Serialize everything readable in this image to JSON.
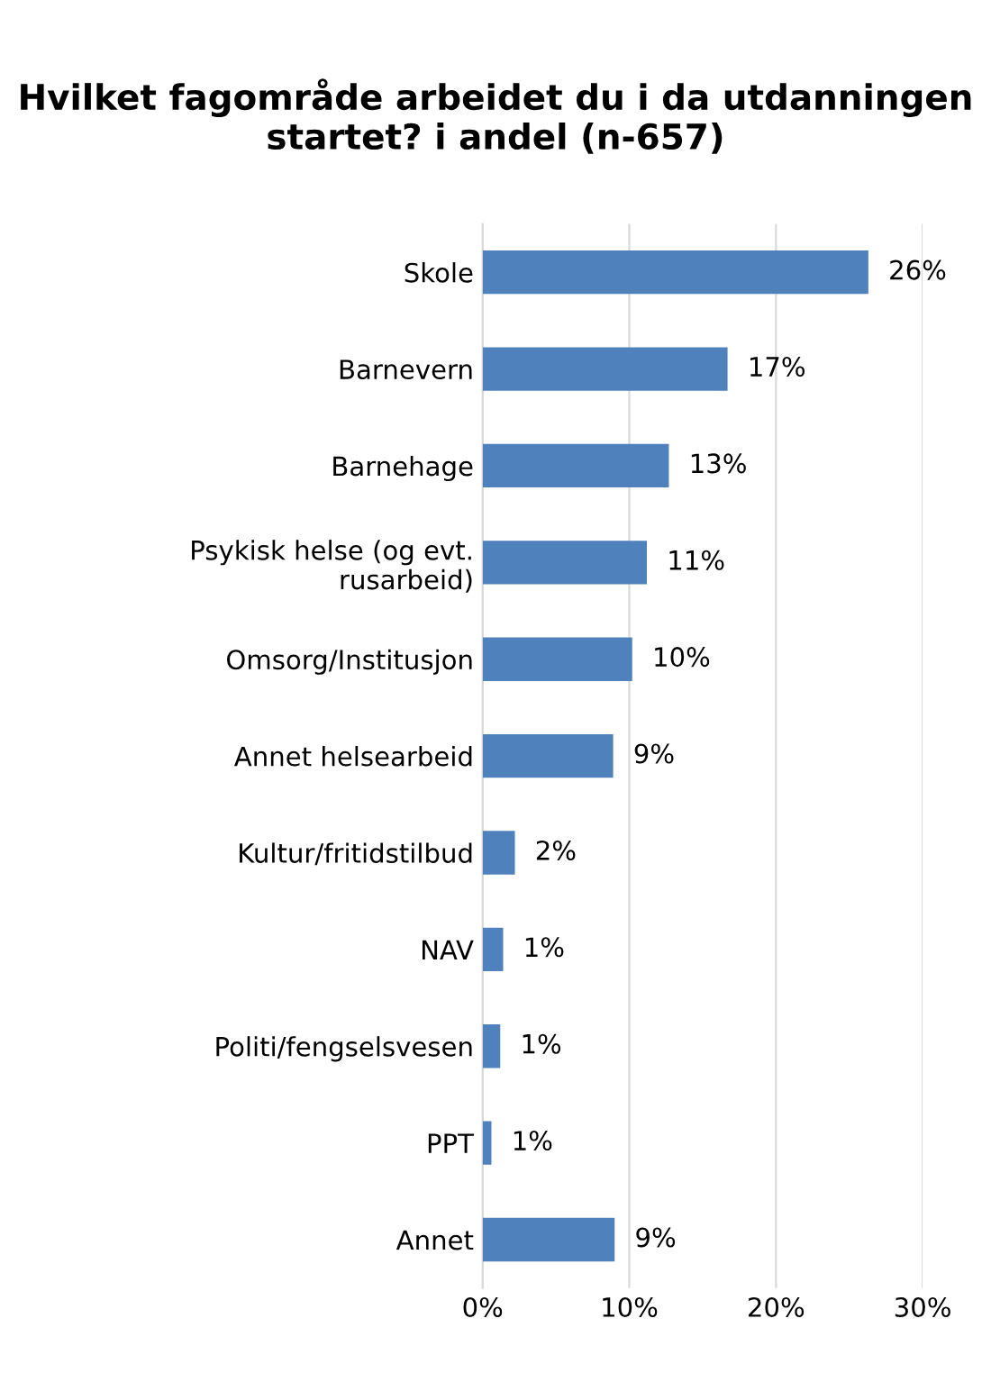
{
  "chart_data": {
    "type": "bar",
    "orientation": "horizontal",
    "title": "Hvilket fagområde arbeidet du i da utdanningen startet? i andel (n-657)",
    "categories": [
      "Skole",
      "Barnevern",
      "Barnehage",
      "Psykisk helse (og evt.\nrusarbeid)",
      "Omsorg/Institusjon",
      "Annet helsearbeid",
      "Kultur/fritidstilbud",
      "NAV",
      "Politi/fengselsvesen",
      "PPT",
      "Annet"
    ],
    "values": [
      26.3,
      16.7,
      12.7,
      11.2,
      10.2,
      8.9,
      2.2,
      1.4,
      1.2,
      0.6,
      9.0
    ],
    "value_labels": [
      "26%",
      "17%",
      "13%",
      "11%",
      "10%",
      "9%",
      "2%",
      "1%",
      "1%",
      "1%",
      "9%"
    ],
    "color": "#4f81bd",
    "xlim": [
      0,
      30
    ],
    "xticks": [
      {
        "value": 0,
        "label": "0%"
      },
      {
        "value": 10,
        "label": "10%"
      },
      {
        "value": 20,
        "label": "20%"
      },
      {
        "value": 30,
        "label": "30%"
      }
    ],
    "grid": "x",
    "legend": false
  }
}
